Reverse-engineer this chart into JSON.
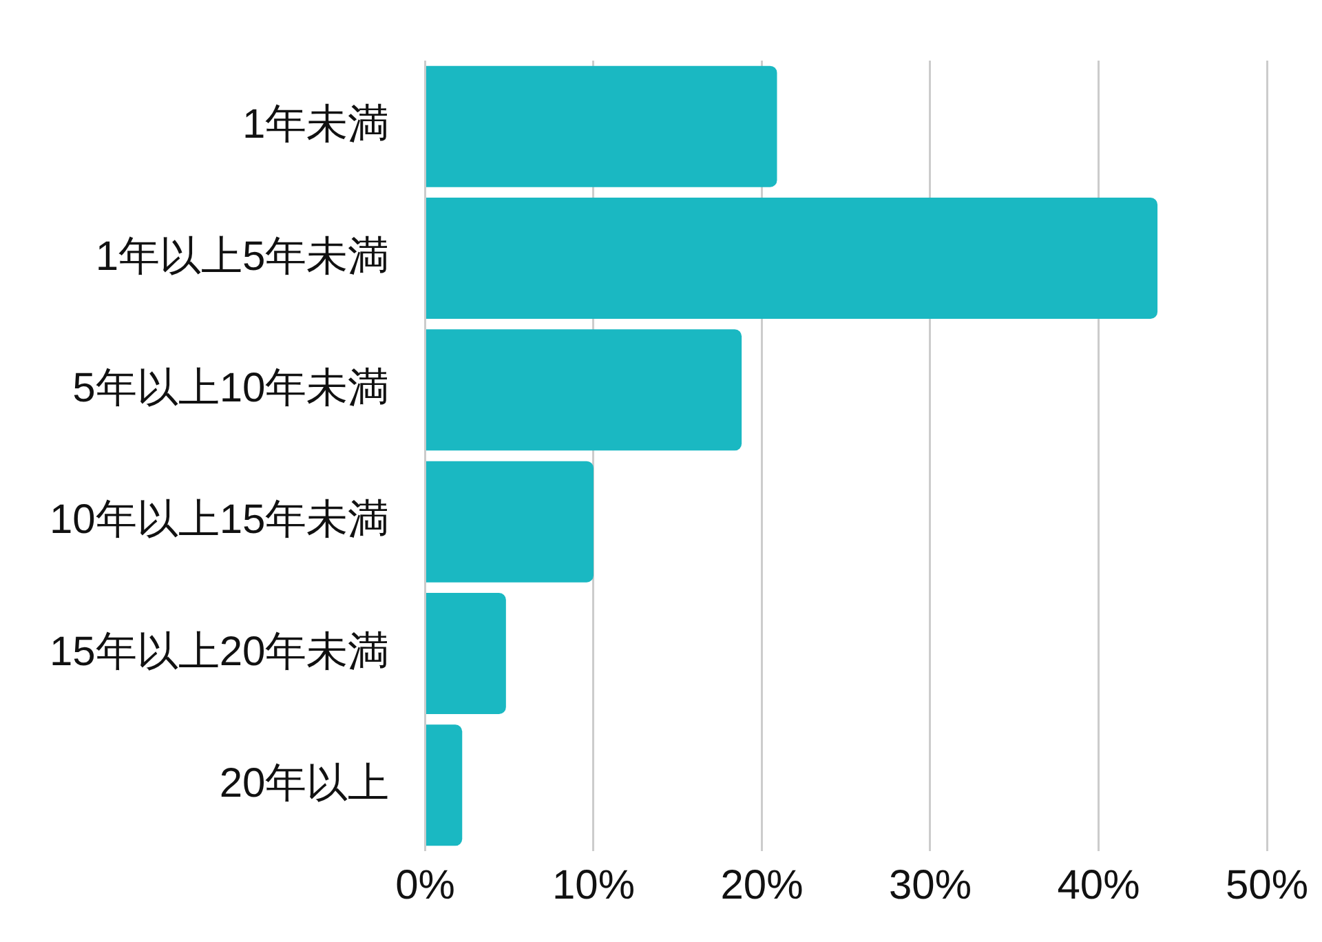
{
  "chart_data": {
    "type": "bar",
    "orientation": "horizontal",
    "categories": [
      "1年未満",
      "1年以上5年未満",
      "5年以上10年未満",
      "10年以上15年未満",
      "15年以上20年未満",
      "20年以上"
    ],
    "values": [
      20.9,
      43.5,
      18.8,
      10.0,
      4.8,
      2.2
    ],
    "color": "#1ab8c2",
    "xlim": [
      0,
      50
    ],
    "xticks": [
      {
        "value": 0,
        "label": "0%"
      },
      {
        "value": 10,
        "label": "10%"
      },
      {
        "value": 20,
        "label": "20%"
      },
      {
        "value": 30,
        "label": "30%"
      },
      {
        "value": 40,
        "label": "40%"
      },
      {
        "value": 50,
        "label": "50%"
      }
    ],
    "grid": "x"
  }
}
